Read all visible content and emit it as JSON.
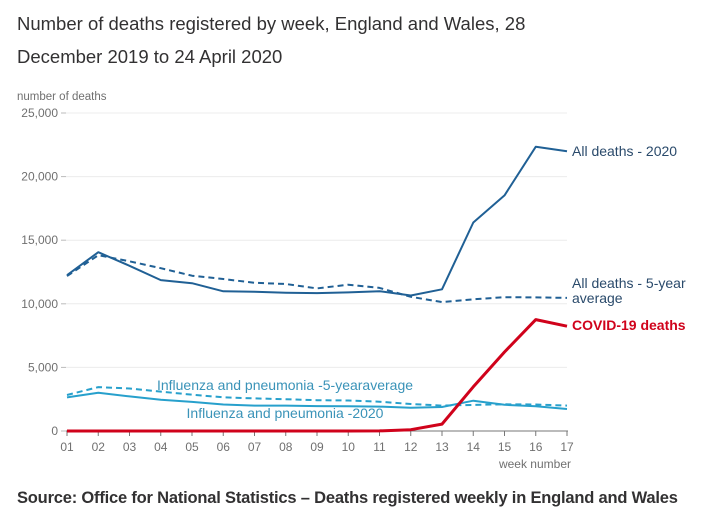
{
  "chart_data": {
    "type": "line",
    "title": "Number of deaths registered by week, England and Wales, 28 December 2019 to 24 April 2020",
    "ylabel": "number of deaths",
    "xlabel": "week number",
    "ylim": [
      0,
      25000
    ],
    "yticks": [
      0,
      5000,
      10000,
      15000,
      20000,
      25000
    ],
    "ytick_labels": [
      "0",
      "5,000",
      "10,000",
      "15,000",
      "20,000",
      "25,000"
    ],
    "grid": true,
    "categories": [
      "01",
      "02",
      "03",
      "04",
      "05",
      "06",
      "07",
      "08",
      "09",
      "10",
      "11",
      "12",
      "13",
      "14",
      "15",
      "16",
      "17"
    ],
    "series": [
      {
        "name": "All deaths - 2020",
        "label_lines": [
          "All deaths - 2020"
        ],
        "color": "#206095",
        "dashed": false,
        "label_bold": false,
        "values": [
          12250,
          14060,
          12990,
          11860,
          11620,
          10980,
          10940,
          10870,
          10840,
          10900,
          10990,
          10650,
          11140,
          16390,
          18520,
          22350,
          21990
        ]
      },
      {
        "name": "All deaths - 5-year average",
        "label_lines": [
          "All deaths - 5-year",
          "average"
        ],
        "color": "#206095",
        "dashed": true,
        "label_bold": false,
        "values": [
          12180,
          13820,
          13340,
          12800,
          12210,
          11950,
          11650,
          11560,
          11210,
          11500,
          11250,
          10550,
          10130,
          10350,
          10520,
          10500,
          10460
        ]
      },
      {
        "name": "COVID-19 deaths",
        "label_lines": [
          "COVID-19 deaths"
        ],
        "color": "#d0021b",
        "dashed": false,
        "label_bold": true,
        "values": [
          0,
          0,
          0,
          0,
          0,
          0,
          0,
          0,
          0,
          0,
          5,
          103,
          539,
          3475,
          6213,
          8758,
          8237
        ]
      },
      {
        "name": "Influenza and pneumonia -5-yearaverage",
        "label_lines": [
          "Influenza and pneumonia -5-yearaverage"
        ],
        "color": "#27a0cc",
        "dashed": true,
        "label_bold": false,
        "values": [
          2830,
          3450,
          3340,
          3100,
          2850,
          2650,
          2560,
          2500,
          2420,
          2400,
          2300,
          2120,
          2000,
          2050,
          2100,
          2080,
          2000
        ]
      },
      {
        "name": "Influenza and pneumonia -2020",
        "label_lines": [
          "Influenza and pneumonia -2020"
        ],
        "color": "#27a0cc",
        "dashed": false,
        "label_bold": false,
        "values": [
          2640,
          3010,
          2720,
          2450,
          2290,
          2080,
          2000,
          2000,
          1960,
          1950,
          1920,
          1820,
          1890,
          2380,
          2060,
          1950,
          1730
        ]
      }
    ],
    "source": "Source: Office for National Statistics – Deaths registered weekly in England and Wales"
  }
}
